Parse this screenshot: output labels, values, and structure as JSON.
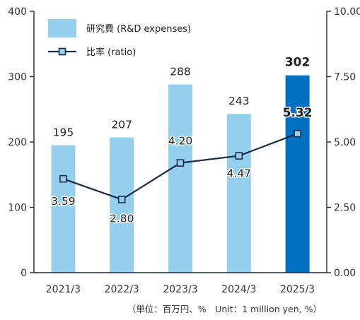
{
  "chart_data": {
    "type": "bar",
    "categories": [
      "2021/3",
      "2022/3",
      "2023/3",
      "2024/3",
      "2025/3"
    ],
    "series": [
      {
        "name": "研究費 (R&D expenses)",
        "type": "bar",
        "axis": "left",
        "values": [
          195,
          207,
          288,
          243,
          302
        ],
        "color": "#95cfee",
        "highlight_color": "#0070c0",
        "highlight_index": 4
      },
      {
        "name": "比率 (ratio)",
        "type": "line",
        "axis": "right",
        "values": [
          3.59,
          2.8,
          4.2,
          4.47,
          5.32
        ],
        "labels": [
          "3.59",
          "2.80",
          "4.20",
          "4.47",
          "5.32"
        ],
        "color": "#1f2a44"
      }
    ],
    "y_left": {
      "lim": [
        0,
        400
      ],
      "ticks": [
        "0",
        "100",
        "200",
        "300",
        "400"
      ]
    },
    "y_right": {
      "lim": [
        0,
        10
      ],
      "ticks": [
        "0.00",
        "2.50",
        "5.00",
        "7.50",
        "10.00"
      ]
    },
    "legend": {
      "position": "top-left",
      "items": [
        "研究費 (R&D expenses)",
        "比率 (ratio)"
      ]
    },
    "note": "（単位：百万円、%　Unit：1 million yen, %）",
    "grid": false
  }
}
